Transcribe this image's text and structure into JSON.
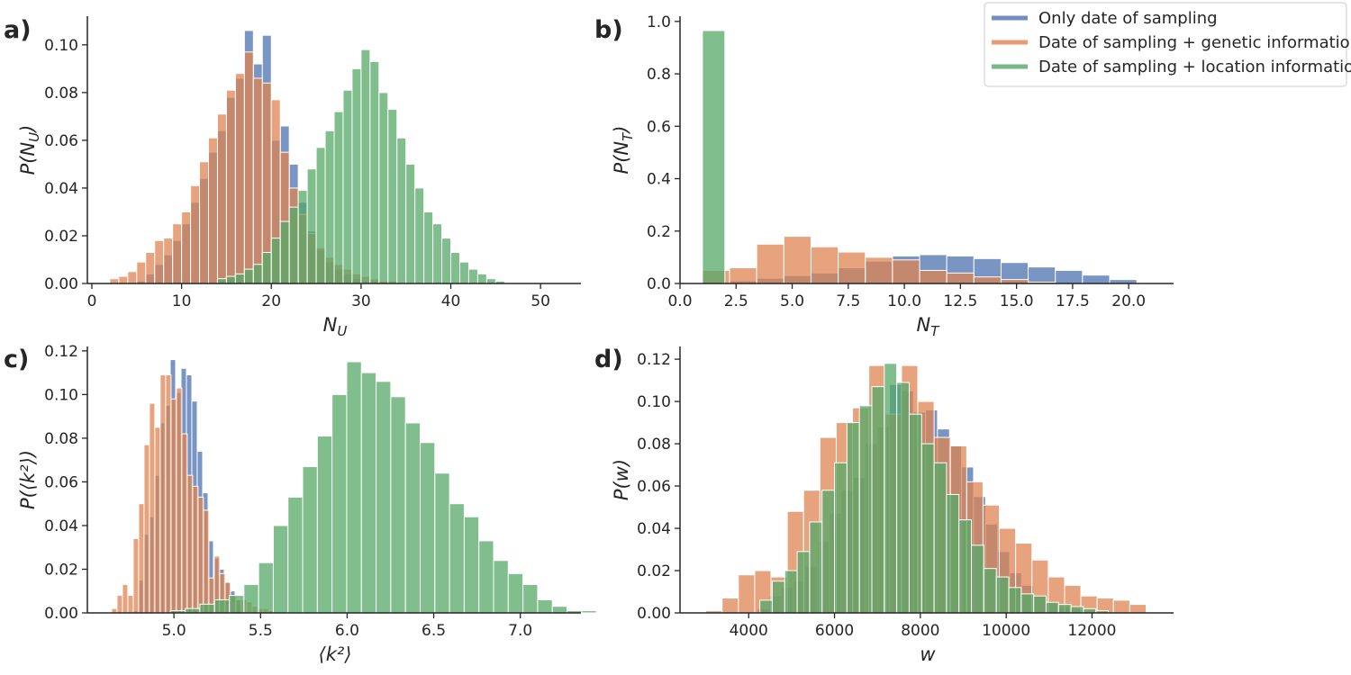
{
  "colors": {
    "only": "#4c72b0",
    "genetic": "#dd8452",
    "location": "#55a868"
  },
  "legend": [
    {
      "key": "only",
      "label": "Only date of sampling"
    },
    {
      "key": "genetic",
      "label": "Date of sampling + genetic information"
    },
    {
      "key": "location",
      "label": "Date of sampling + location information"
    }
  ],
  "panels": {
    "a": {
      "label": "a)"
    },
    "b": {
      "label": "b)"
    },
    "c": {
      "label": "c)"
    },
    "d": {
      "label": "d)"
    }
  },
  "chart_data": [
    {
      "id": "a",
      "type": "bar",
      "panel_label": "a)",
      "xlabel": "N_U",
      "ylabel": "P(N_U)",
      "xlim": [
        -0.5,
        54.5
      ],
      "ylim": [
        0,
        0.112
      ],
      "xticks": [
        0,
        10,
        20,
        30,
        40,
        50
      ],
      "xtick_labels": [
        "0",
        "10",
        "20",
        "30",
        "40",
        "50"
      ],
      "yticks": [
        0,
        0.02,
        0.04,
        0.06,
        0.08,
        0.1
      ],
      "ytick_labels": [
        "0.00",
        "0.02",
        "0.04",
        "0.06",
        "0.08",
        "0.10"
      ],
      "series": [
        {
          "name": "Only date of sampling",
          "key": "only",
          "bin_start": 5,
          "bin_width": 1,
          "values": [
            0.001,
            0.004,
            0.008,
            0.012,
            0.018,
            0.025,
            0.034,
            0.044,
            0.055,
            0.064,
            0.078,
            0.086,
            0.106,
            0.092,
            0.104,
            0.06,
            0.066,
            0.05,
            0.034,
            0.022,
            0.014,
            0.009,
            0.006,
            0.004,
            0.002,
            0.001,
            0.001
          ]
        },
        {
          "name": "Date of sampling + genetic information",
          "key": "genetic",
          "bin_start": 2,
          "bin_width": 1,
          "values": [
            0.002,
            0.003,
            0.005,
            0.009,
            0.013,
            0.018,
            0.019,
            0.025,
            0.03,
            0.041,
            0.051,
            0.061,
            0.071,
            0.081,
            0.088,
            0.097,
            0.086,
            0.084,
            0.077,
            0.055,
            0.04,
            0.029,
            0.021,
            0.015,
            0.011,
            0.008,
            0.006,
            0.004,
            0.003,
            0.002,
            0.001,
            0.001
          ]
        },
        {
          "name": "Date of sampling + location information",
          "key": "location",
          "bin_start": 14,
          "bin_width": 1,
          "values": [
            0.002,
            0.003,
            0.004,
            0.006,
            0.008,
            0.013,
            0.019,
            0.026,
            0.032,
            0.039,
            0.048,
            0.057,
            0.064,
            0.072,
            0.081,
            0.09,
            0.098,
            0.093,
            0.08,
            0.073,
            0.061,
            0.05,
            0.04,
            0.03,
            0.025,
            0.019,
            0.013,
            0.009,
            0.006,
            0.004,
            0.002,
            0.001
          ]
        }
      ]
    },
    {
      "id": "b",
      "type": "bar",
      "panel_label": "b)",
      "xlabel": "N_T",
      "ylabel": "P(N_T)",
      "xlim": [
        0,
        22
      ],
      "ylim": [
        0,
        1.02
      ],
      "xticks": [
        0,
        2.5,
        5,
        7.5,
        10,
        12.5,
        15,
        17.5,
        20
      ],
      "xtick_labels": [
        "0.0",
        "2.5",
        "5.0",
        "7.5",
        "10.0",
        "12.5",
        "15.0",
        "17.5",
        "20.0"
      ],
      "yticks": [
        0,
        0.2,
        0.4,
        0.6,
        0.8,
        1.0
      ],
      "ytick_labels": [
        "0.0",
        "0.2",
        "0.4",
        "0.6",
        "0.8",
        "1.0"
      ],
      "series": [
        {
          "name": "Only date of sampling",
          "key": "only",
          "bin_start": 1,
          "bin_width": 1.21,
          "values": [
            0.005,
            0.01,
            0.02,
            0.03,
            0.04,
            0.06,
            0.085,
            0.105,
            0.11,
            0.105,
            0.095,
            0.08,
            0.063,
            0.05,
            0.032,
            0.015
          ]
        },
        {
          "name": "Date of sampling + genetic information",
          "key": "genetic",
          "bin_start": 1,
          "bin_width": 1.21,
          "values": [
            0.05,
            0.06,
            0.15,
            0.18,
            0.14,
            0.12,
            0.1,
            0.09,
            0.05,
            0.04,
            0.025,
            0.015,
            0.005
          ]
        },
        {
          "name": "Date of sampling + location information",
          "key": "location",
          "bin_start": 1,
          "bin_width": 1.0,
          "values": [
            0.965
          ]
        }
      ]
    },
    {
      "id": "c",
      "type": "bar",
      "panel_label": "c)",
      "xlabel": "⟨k²⟩",
      "ylabel": "P(⟨k²⟩)",
      "xlim": [
        4.5,
        7.35
      ],
      "ylim": [
        0,
        0.122
      ],
      "xticks": [
        5.0,
        5.5,
        6.0,
        6.5,
        7.0
      ],
      "xtick_labels": [
        "5.0",
        "5.5",
        "6.0",
        "6.5",
        "7.0"
      ],
      "yticks": [
        0,
        0.02,
        0.04,
        0.06,
        0.08,
        0.1,
        0.12
      ],
      "ytick_labels": [
        "0.00",
        "0.02",
        "0.04",
        "0.06",
        "0.08",
        "0.10",
        "0.12"
      ],
      "series": [
        {
          "name": "Only date of sampling",
          "key": "only",
          "bin_start": 4.76,
          "bin_width": 0.0312,
          "values": [
            0.001,
            0.015,
            0.036,
            0.044,
            0.063,
            0.087,
            0.095,
            0.116,
            0.101,
            0.112,
            0.109,
            0.097,
            0.074,
            0.055,
            0.033,
            0.025,
            0.02,
            0.014,
            0.01,
            0.006
          ]
        },
        {
          "name": "Date of sampling + genetic information",
          "key": "genetic",
          "bin_start": 4.64,
          "bin_width": 0.0312,
          "values": [
            0.002,
            0.008,
            0.013,
            0.008,
            0.034,
            0.05,
            0.077,
            0.096,
            0.085,
            0.109,
            0.109,
            0.098,
            0.103,
            0.082,
            0.063,
            0.058,
            0.053,
            0.047,
            0.016,
            0.026,
            0.018,
            0.014,
            0.008,
            0.006,
            0.006,
            0.005,
            0.003,
            0.002,
            0.002,
            0.001
          ]
        },
        {
          "name": "Date of sampling + location information",
          "key": "location",
          "bin_start": 4.98,
          "bin_width": 0.0848,
          "values": [
            0.001,
            0.002,
            0.004,
            0.006,
            0.008,
            0.013,
            0.023,
            0.04,
            0.053,
            0.067,
            0.081,
            0.1,
            0.115,
            0.11,
            0.106,
            0.099,
            0.087,
            0.078,
            0.064,
            0.05,
            0.044,
            0.033,
            0.024,
            0.018,
            0.013,
            0.006,
            0.003,
            0.001,
            0.001
          ]
        }
      ]
    },
    {
      "id": "d",
      "type": "bar",
      "panel_label": "d)",
      "xlabel": "w",
      "ylabel": "P(w)",
      "xlim": [
        2400,
        13900
      ],
      "ylim": [
        0,
        0.126
      ],
      "xticks": [
        4000,
        6000,
        8000,
        10000,
        12000
      ],
      "xtick_labels": [
        "4000",
        "6000",
        "8000",
        "10000",
        "12000"
      ],
      "yticks": [
        0,
        0.02,
        0.04,
        0.06,
        0.08,
        0.1,
        0.12
      ],
      "ytick_labels": [
        "0.00",
        "0.02",
        "0.04",
        "0.06",
        "0.08",
        "0.10",
        "0.12"
      ],
      "series": [
        {
          "name": "Only date of sampling",
          "key": "only",
          "bin_start": 4200,
          "bin_width": 280,
          "values": [
            0.002,
            0.008,
            0.012,
            0.015,
            0.022,
            0.034,
            0.047,
            0.058,
            0.064,
            0.08,
            0.088,
            0.108,
            0.105,
            0.095,
            0.096,
            0.087,
            0.079,
            0.069,
            0.055,
            0.042,
            0.029,
            0.019,
            0.013,
            0.008,
            0.005,
            0.003,
            0.002
          ]
        },
        {
          "name": "Date of sampling + genetic information",
          "key": "genetic",
          "bin_start": 3000,
          "bin_width": 380,
          "values": [
            0.001,
            0.007,
            0.018,
            0.02,
            0.017,
            0.048,
            0.058,
            0.083,
            0.09,
            0.097,
            0.117,
            0.094,
            0.117,
            0.1,
            0.083,
            0.079,
            0.062,
            0.051,
            0.04,
            0.033,
            0.025,
            0.017,
            0.013,
            0.008,
            0.007,
            0.006,
            0.004
          ]
        },
        {
          "name": "Date of sampling + location information",
          "key": "location",
          "bin_start": 4260,
          "bin_width": 290,
          "values": [
            0.006,
            0.015,
            0.02,
            0.029,
            0.043,
            0.058,
            0.071,
            0.09,
            0.098,
            0.107,
            0.118,
            0.109,
            0.094,
            0.08,
            0.071,
            0.056,
            0.044,
            0.032,
            0.021,
            0.017,
            0.012,
            0.009,
            0.008,
            0.005,
            0.004,
            0.003,
            0.002,
            0.001
          ]
        }
      ]
    }
  ]
}
